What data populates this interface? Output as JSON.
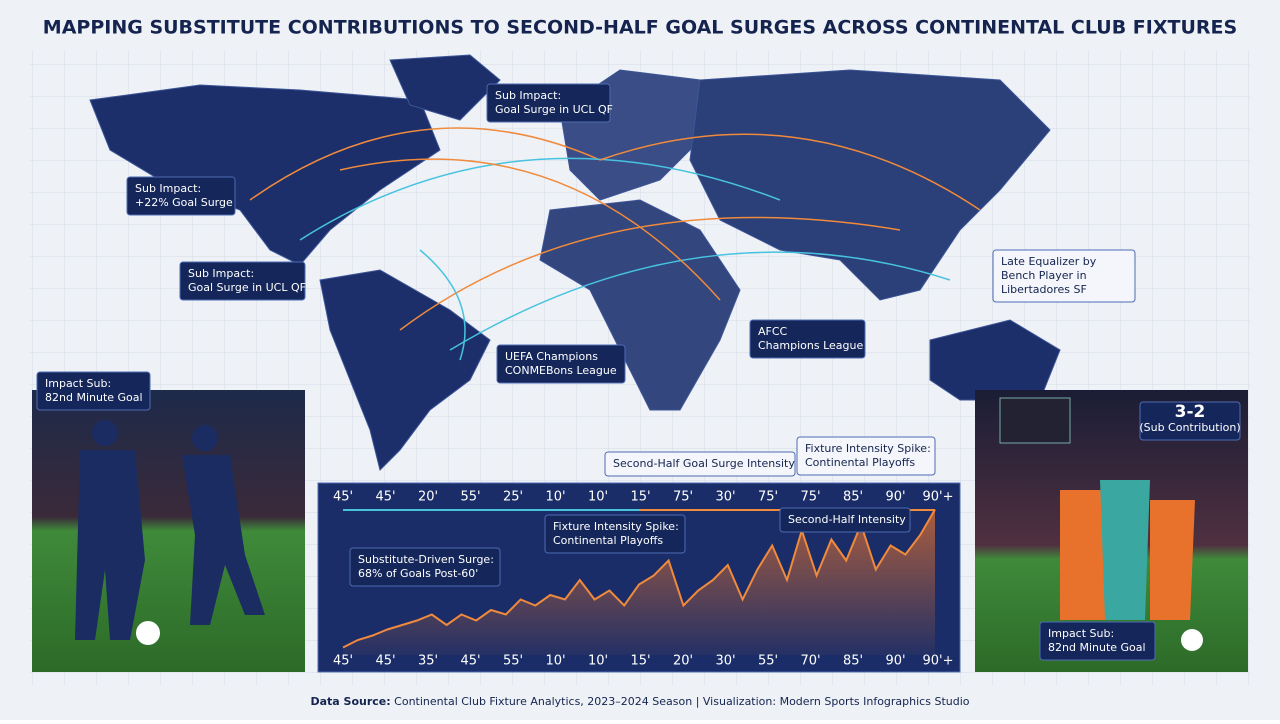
{
  "title": "MAPPING SUBSTITUTE CONTRIBUTIONS TO SECOND-HALF GOAL SURGES ACROSS CONTINENTAL CLUB FIXTURES",
  "callouts": [
    {
      "lines": [
        "Sub Impact:",
        "Goal Surge in UCL QF"
      ]
    },
    {
      "lines": [
        "Sub Impact:",
        "+22% Goal Surge"
      ]
    },
    {
      "lines": [
        "Sub Impact:",
        "Goal Surge in UCL QF"
      ]
    },
    {
      "lines": [
        "Late Equalizer by",
        "Bench Player in",
        "Libertadores SF"
      ]
    },
    {
      "lines": [
        "AFCC",
        "Champions League"
      ]
    },
    {
      "lines": [
        "UEFA Champions",
        "CONMEBons League"
      ]
    },
    {
      "lines": [
        "Impact Sub:",
        "82nd Minute Goal"
      ]
    },
    {
      "lines": [
        "3-2",
        "(Sub Contribution)"
      ]
    },
    {
      "lines": [
        "Impact Sub:",
        "82nd Minute Goal"
      ]
    }
  ],
  "chart": {
    "top_labels": [
      "45'",
      "45'",
      "20'",
      "55'",
      "25'",
      "10'",
      "10'",
      "15'",
      "75'",
      "30'",
      "75'",
      "75'",
      "85'",
      "90'",
      "90'+"
    ],
    "bottom_labels": [
      "45'",
      "45'",
      "35'",
      "45'",
      "55'",
      "10'",
      "10'",
      "15'",
      "20'",
      "30'",
      "55'",
      "70'",
      "85'",
      "90'",
      "90'+"
    ],
    "annotations": [
      {
        "lines": [
          "Second-Half Goal Surge Intensity"
        ]
      },
      {
        "lines": [
          "Fixture Intensity Spike:",
          "Continental Playoffs"
        ]
      },
      {
        "lines": [
          "Fixture Intensity Spike:",
          "Continental Playoffs"
        ]
      },
      {
        "lines": [
          "Second-Half Intensity"
        ]
      },
      {
        "lines": [
          "Substitute-Driven Surge:",
          "68% of Goals Post-60'"
        ]
      }
    ],
    "ylim": [
      0,
      100
    ],
    "values": [
      5,
      10,
      13,
      17,
      20,
      23,
      27,
      20,
      27,
      23,
      30,
      27,
      37,
      33,
      40,
      37,
      50,
      37,
      43,
      33,
      47,
      53,
      63,
      33,
      43,
      50,
      60,
      37,
      57,
      73,
      50,
      83,
      53,
      77,
      63,
      87,
      57,
      73,
      67,
      80,
      97
    ]
  },
  "footer": {
    "source_label": "Data Source:",
    "source_text": "Continental Club Fixture Analytics, 2023–2024 Season | Visualization: Modern Sports Infographics Studio"
  }
}
